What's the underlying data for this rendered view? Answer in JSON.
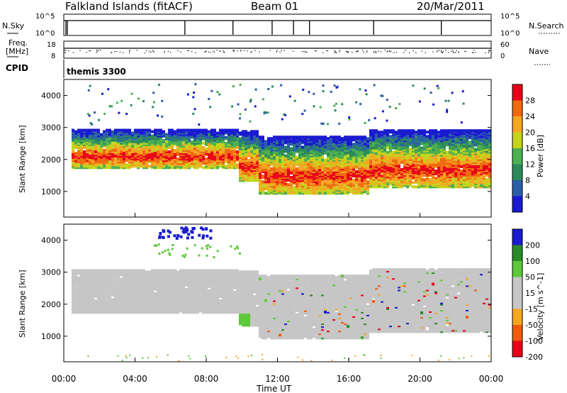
{
  "header": {
    "station": "Falkland Islands (fitACF)",
    "beam": "Beam 01",
    "date": "20/Mar/2011"
  },
  "noise_panel": {
    "left_label": "N.Sky",
    "left_ticks": [
      "10^5",
      "10^0"
    ],
    "right_ticks": [
      "10^5",
      "10^0"
    ],
    "right_label": "N.Search"
  },
  "freq_panel": {
    "left_label": "Freq.",
    "left_unit": "[MHz]",
    "left_ticks": [
      "18",
      "8"
    ],
    "right_ticks": [
      "60",
      "0"
    ],
    "right_label": "Nave"
  },
  "cpid": {
    "label": "CPID",
    "mode": "themis 3300"
  },
  "x_axis": {
    "label": "Time UT",
    "ticks": [
      "00:00",
      "04:00",
      "08:00",
      "12:00",
      "16:00",
      "20:00",
      "00:00"
    ]
  },
  "colors": {
    "velocity_scale": [
      "#e8001a",
      "#f05b10",
      "#f5a623",
      "#c6c6c6",
      "#c6c6c6",
      "#5dc83a",
      "#2a8a2a",
      "#1a1ad0"
    ],
    "power_scale": [
      "#1a1ad0",
      "#2a5fa8",
      "#2c8a5a",
      "#4caf50",
      "#c4d41c",
      "#f5a623",
      "#f06a10",
      "#e8001a"
    ]
  },
  "chart_data": [
    {
      "type": "heatmap",
      "title": "",
      "xlabel": "Time UT",
      "ylabel": "Slant Range [km]",
      "x_range_hours": [
        0,
        24
      ],
      "ylim_km": [
        200,
        4500
      ],
      "y_ticks": [
        "1000",
        "2000",
        "3000",
        "4000"
      ],
      "colorbar": {
        "label": "Power [dB]",
        "ticks": [
          "4",
          "8",
          "12",
          "16",
          "20",
          "24",
          "28"
        ],
        "range": [
          0,
          30
        ]
      },
      "scatter_bands": [
        {
          "start_hr": 0.3,
          "end_hr": 9.8,
          "lower_km": 1700,
          "upper_km": 2900,
          "peak_db": 28
        },
        {
          "start_hr": 9.8,
          "end_hr": 10.8,
          "lower_km": 1300,
          "upper_km": 2850,
          "peak_db": 26
        },
        {
          "start_hr": 10.8,
          "end_hr": 17.0,
          "lower_km": 900,
          "upper_km": 2700,
          "peak_db": 24
        },
        {
          "start_hr": 17.0,
          "end_hr": 24.0,
          "lower_km": 1100,
          "upper_km": 2900,
          "peak_db": 26
        }
      ]
    },
    {
      "type": "heatmap",
      "title": "",
      "xlabel": "Time UT",
      "ylabel": "Slant Range [km]",
      "x_range_hours": [
        0,
        24
      ],
      "ylim_km": [
        200,
        4500
      ],
      "y_ticks": [
        "1000",
        "2000",
        "3000",
        "4000"
      ],
      "colorbar": {
        "label": "Velocity [m s^-1]",
        "ticks": [
          "200",
          "100",
          "50",
          "15",
          "-15",
          "-50",
          "-100",
          "-200"
        ],
        "range": [
          -250,
          250
        ]
      },
      "dominant_value": "15 to -15 (ground scatter, grey)"
    }
  ]
}
